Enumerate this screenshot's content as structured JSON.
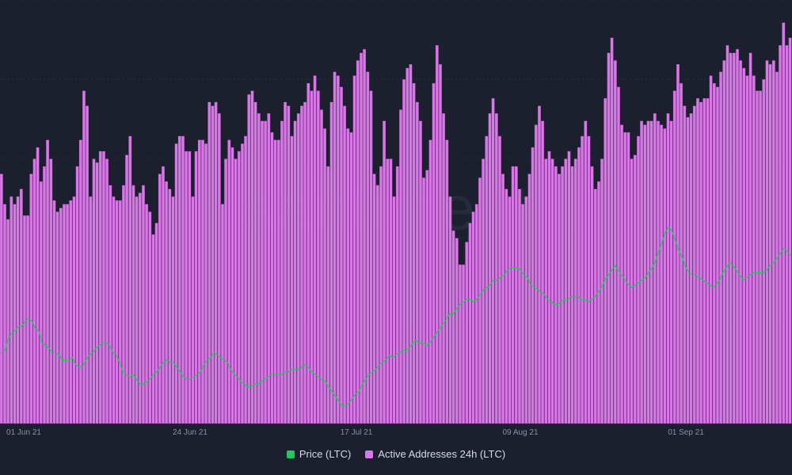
{
  "watermark": "santiment",
  "legend": {
    "price_label": "Price (LTC)",
    "addresses_label": "Active Addresses 24h (LTC)"
  },
  "colors": {
    "background": "#1b1f2e",
    "grid": "#2b3042",
    "price": "#22c55e",
    "addresses": "#d878e6",
    "bar_edge": "#8e3f9c"
  },
  "chart_data": {
    "type": "bar",
    "x_ticks": [
      "01 Jun 21",
      "24 Jun 21",
      "17 Jul 21",
      "09 Aug 21",
      "01 Sep 21"
    ],
    "x_range": [
      "30 May 21",
      "15 Sep 21"
    ],
    "grid": true,
    "legend_position": "bottom-center",
    "series": [
      {
        "name": "Active Addresses 24h (LTC)",
        "type": "bar",
        "values": [
          0.66,
          0.58,
          0.54,
          0.6,
          0.58,
          0.6,
          0.62,
          0.55,
          0.55,
          0.66,
          0.7,
          0.73,
          0.64,
          0.68,
          0.75,
          0.7,
          0.59,
          0.56,
          0.57,
          0.58,
          0.58,
          0.59,
          0.6,
          0.68,
          0.75,
          0.88,
          0.84,
          0.6,
          0.7,
          0.69,
          0.72,
          0.72,
          0.7,
          0.63,
          0.6,
          0.59,
          0.59,
          0.63,
          0.71,
          0.76,
          0.63,
          0.6,
          0.61,
          0.63,
          0.58,
          0.56,
          0.5,
          0.53,
          0.66,
          0.68,
          0.64,
          0.62,
          0.6,
          0.74,
          0.76,
          0.76,
          0.72,
          0.72,
          0.6,
          0.72,
          0.75,
          0.75,
          0.74,
          0.85,
          0.84,
          0.85,
          0.82,
          0.58,
          0.7,
          0.75,
          0.73,
          0.7,
          0.72,
          0.74,
          0.76,
          0.87,
          0.88,
          0.85,
          0.82,
          0.8,
          0.8,
          0.82,
          0.77,
          0.75,
          0.75,
          0.8,
          0.85,
          0.84,
          0.76,
          0.8,
          0.82,
          0.84,
          0.85,
          0.9,
          0.88,
          0.92,
          0.88,
          0.83,
          0.78,
          0.68,
          0.85,
          0.93,
          0.92,
          0.89,
          0.84,
          0.78,
          0.77,
          0.92,
          0.96,
          0.98,
          0.99,
          0.93,
          0.88,
          0.66,
          0.63,
          0.68,
          0.8,
          0.7,
          0.7,
          0.6,
          0.68,
          0.83,
          0.91,
          0.94,
          0.95,
          0.9,
          0.85,
          0.8,
          0.65,
          0.67,
          0.75,
          0.9,
          1.0,
          0.95,
          0.82,
          0.75,
          0.6,
          0.51,
          0.49,
          0.42,
          0.42,
          0.48,
          0.53,
          0.56,
          0.58,
          0.65,
          0.7,
          0.76,
          0.82,
          0.86,
          0.82,
          0.76,
          0.66,
          0.62,
          0.6,
          0.68,
          0.68,
          0.62,
          0.58,
          0.6,
          0.66,
          0.73,
          0.79,
          0.84,
          0.8,
          0.7,
          0.72,
          0.7,
          0.68,
          0.66,
          0.68,
          0.7,
          0.72,
          0.68,
          0.7,
          0.73,
          0.76,
          0.8,
          0.76,
          0.68,
          0.62,
          0.64,
          0.7,
          0.86,
          0.98,
          1.02,
          0.96,
          0.89,
          0.79,
          0.77,
          0.77,
          0.7,
          0.71,
          0.76,
          0.8,
          0.79,
          0.8,
          0.8,
          0.82,
          0.8,
          0.79,
          0.78,
          0.82,
          0.8,
          0.88,
          0.95,
          0.9,
          0.84,
          0.81,
          0.82,
          0.84,
          0.86,
          0.85,
          0.86,
          0.86,
          0.92,
          0.9,
          0.89,
          0.93,
          0.96,
          1.0,
          0.98,
          0.98,
          0.99,
          0.96,
          0.94,
          0.92,
          0.98,
          0.92,
          0.88,
          0.88,
          0.91,
          0.96,
          0.95,
          0.96,
          0.93,
          1.0,
          1.06,
          1.0,
          1.02
        ]
      },
      {
        "name": "Price (LTC)",
        "type": "line",
        "values": [
          0.66,
          0.67,
          0.72,
          0.74,
          0.75,
          0.77,
          0.77,
          0.79,
          0.8,
          0.79,
          0.76,
          0.75,
          0.7,
          0.69,
          0.68,
          0.66,
          0.66,
          0.65,
          0.63,
          0.63,
          0.63,
          0.64,
          0.61,
          0.6,
          0.6,
          0.63,
          0.65,
          0.66,
          0.68,
          0.69,
          0.7,
          0.7,
          0.69,
          0.66,
          0.65,
          0.62,
          0.58,
          0.57,
          0.56,
          0.57,
          0.55,
          0.53,
          0.53,
          0.54,
          0.55,
          0.57,
          0.58,
          0.6,
          0.62,
          0.63,
          0.62,
          0.62,
          0.6,
          0.58,
          0.56,
          0.55,
          0.55,
          0.56,
          0.57,
          0.58,
          0.61,
          0.63,
          0.64,
          0.66,
          0.65,
          0.64,
          0.63,
          0.62,
          0.59,
          0.57,
          0.56,
          0.54,
          0.53,
          0.52,
          0.52,
          0.53,
          0.53,
          0.54,
          0.55,
          0.56,
          0.57,
          0.57,
          0.57,
          0.57,
          0.58,
          0.58,
          0.59,
          0.59,
          0.59,
          0.6,
          0.61,
          0.6,
          0.58,
          0.57,
          0.56,
          0.55,
          0.54,
          0.52,
          0.5,
          0.48,
          0.46,
          0.44,
          0.44,
          0.45,
          0.47,
          0.49,
          0.5,
          0.53,
          0.55,
          0.57,
          0.58,
          0.59,
          0.61,
          0.62,
          0.63,
          0.65,
          0.64,
          0.65,
          0.66,
          0.67,
          0.67,
          0.68,
          0.7,
          0.71,
          0.7,
          0.7,
          0.69,
          0.7,
          0.72,
          0.74,
          0.76,
          0.78,
          0.8,
          0.82,
          0.82,
          0.84,
          0.86,
          0.87,
          0.88,
          0.88,
          0.87,
          0.88,
          0.9,
          0.92,
          0.93,
          0.94,
          0.96,
          0.96,
          0.97,
          0.98,
          1.0,
          1.01,
          1.01,
          1.01,
          1.0,
          0.98,
          0.97,
          0.94,
          0.93,
          0.92,
          0.91,
          0.9,
          0.88,
          0.87,
          0.86,
          0.86,
          0.87,
          0.88,
          0.88,
          0.89,
          0.89,
          0.89,
          0.88,
          0.88,
          0.87,
          0.88,
          0.89,
          0.91,
          0.93,
          0.96,
          0.98,
          1.0,
          1.02,
          1.0,
          0.98,
          0.96,
          0.94,
          0.93,
          0.94,
          0.95,
          0.96,
          0.97,
          0.99,
          1.01,
          1.04,
          1.08,
          1.12,
          1.16,
          1.18,
          1.16,
          1.12,
          1.08,
          1.05,
          1.01,
          0.99,
          0.98,
          0.98,
          0.97,
          0.96,
          0.95,
          0.94,
          0.93,
          0.94,
          0.96,
          0.99,
          1.01,
          1.03,
          1.02,
          1.0,
          0.98,
          0.96,
          0.97,
          0.98,
          0.99,
          0.99,
          0.99,
          0.99,
          1.0,
          1.02,
          1.03,
          1.05,
          1.07,
          1.09,
          1.08,
          1.06
        ]
      }
    ]
  }
}
